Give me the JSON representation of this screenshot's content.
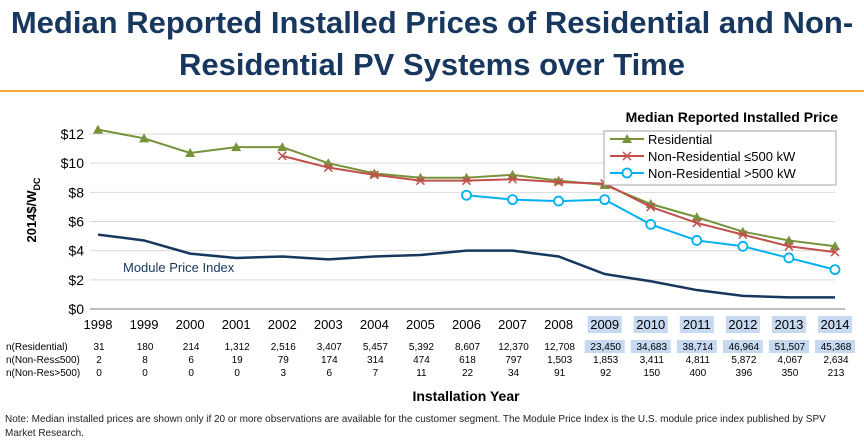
{
  "slide": {
    "title": "Median Reported Installed Prices of Residential and Non-Residential PV Systems over Time",
    "note": "Note: Median installed prices are shown only if 20 or more observations are available for the customer segment. The Module Price Index is the U.S. module price index published by SPV Market Research."
  },
  "chart_data": {
    "type": "line",
    "title": "Median Reported Installed Price",
    "xlabel": "Installation Year",
    "ylabel": "2014$/W",
    "ylabel_sub": "DC",
    "ylim": [
      0,
      12
    ],
    "yticks": [
      "$0",
      "$2",
      "$4",
      "$6",
      "$8",
      "$10",
      "$12"
    ],
    "grid": true,
    "legend_position": "top-right",
    "categories": [
      "1998",
      "1999",
      "2000",
      "2001",
      "2002",
      "2003",
      "2004",
      "2005",
      "2006",
      "2007",
      "2008",
      "2009",
      "2010",
      "2011",
      "2012",
      "2013",
      "2014"
    ],
    "highlighted_categories": [
      "2009",
      "2010",
      "2011",
      "2012",
      "2013",
      "2014"
    ],
    "series": [
      {
        "name": "Residential",
        "color": "#77933c",
        "marker": "triangle",
        "values": [
          12.3,
          11.7,
          10.7,
          11.1,
          11.1,
          10.0,
          9.3,
          9.0,
          9.0,
          9.2,
          8.8,
          8.5,
          7.2,
          6.3,
          5.3,
          4.7,
          4.3
        ]
      },
      {
        "name": "Non-Residential ≤500 kW",
        "color": "#c0504d",
        "marker": "x",
        "values": [
          null,
          null,
          null,
          null,
          10.5,
          9.7,
          9.2,
          8.8,
          8.8,
          8.9,
          8.7,
          8.6,
          7.0,
          5.9,
          5.1,
          4.3,
          3.9
        ]
      },
      {
        "name": "Non-Residential >500 kW",
        "color": "#00b0f0",
        "marker": "circle",
        "values": [
          null,
          null,
          null,
          null,
          null,
          null,
          null,
          null,
          7.8,
          7.5,
          7.4,
          7.5,
          5.8,
          4.7,
          4.3,
          3.5,
          2.7
        ]
      },
      {
        "name": "Module Price Index",
        "color": "#17375e",
        "marker": "none",
        "label_inline": true,
        "values": [
          5.1,
          4.7,
          3.8,
          3.5,
          3.6,
          3.4,
          3.6,
          3.7,
          4.0,
          4.0,
          3.6,
          2.4,
          1.9,
          1.3,
          0.9,
          0.8,
          0.8
        ]
      }
    ],
    "counts_table": [
      {
        "label": "n(Residential)",
        "values": [
          "31",
          "180",
          "214",
          "1,312",
          "2,516",
          "3,407",
          "5,457",
          "5,392",
          "8,607",
          "12,370",
          "12,708",
          "23,450",
          "34,683",
          "38,714",
          "46,964",
          "51,507",
          "45,368"
        ]
      },
      {
        "label": "n(Non-Res≤500)",
        "values": [
          "2",
          "8",
          "6",
          "19",
          "79",
          "174",
          "314",
          "474",
          "618",
          "797",
          "1,503",
          "1,853",
          "3,411",
          "4,811",
          "5,872",
          "4,067",
          "2,634"
        ]
      },
      {
        "label": "n(Non-Res>500)",
        "values": [
          "0",
          "0",
          "0",
          "0",
          "3",
          "6",
          "7",
          "11",
          "22",
          "34",
          "91",
          "92",
          "150",
          "400",
          "396",
          "350",
          "213"
        ]
      }
    ]
  },
  "colors": {
    "title": "#17375e",
    "accent_rule": "#f2a53a",
    "highlight": "#c6d9f1",
    "axis_text": "#000000"
  }
}
